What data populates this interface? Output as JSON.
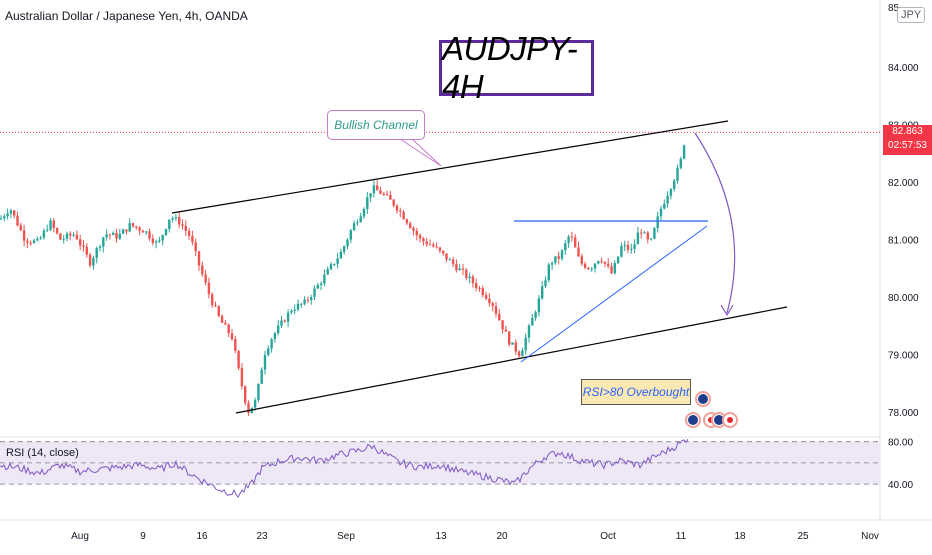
{
  "header": {
    "title": "Australian Dollar / Japanese Yen, 4h, OANDA"
  },
  "currency_badge": "JPY",
  "annotations": {
    "title_box": "AUDJPY-4H",
    "channel_label": "Bullish Channel",
    "rsi_note": "RSI>80 Overbought"
  },
  "last_price": {
    "value": "82.863",
    "countdown": "02:57:53"
  },
  "rsi_panel": {
    "label": "RSI (14, close)",
    "levels": [
      "80.00",
      "40.00"
    ]
  },
  "colors": {
    "up": "#26a69a",
    "down": "#ef5350",
    "rsi_line": "#7e57c2",
    "rsi_band": "#ede7f6",
    "channel": "#000000",
    "triangle": "#2962ff",
    "arc": "#7e57c2",
    "price_line": "#f23645"
  },
  "chart_data": {
    "type": "candlestick",
    "title": "Australian Dollar / Japanese Yen, 4h, OANDA",
    "price_axis": {
      "ticks": [
        "85",
        "84.000",
        "83.000",
        "82.000",
        "81.000",
        "80.000",
        "79.000",
        "78.000"
      ],
      "range": [
        77.6,
        85.0
      ]
    },
    "time_axis": {
      "ticks": [
        "Aug",
        "9",
        "16",
        "23",
        "Sep",
        "13",
        "20",
        "Oct",
        "11",
        "18",
        "25",
        "Nov"
      ]
    },
    "price_path": [
      [
        0,
        81.35
      ],
      [
        10,
        81.55
      ],
      [
        25,
        81.0
      ],
      [
        38,
        80.95
      ],
      [
        50,
        81.3
      ],
      [
        60,
        81.0
      ],
      [
        75,
        81.1
      ],
      [
        90,
        80.6
      ],
      [
        105,
        81.1
      ],
      [
        118,
        81.05
      ],
      [
        130,
        81.25
      ],
      [
        145,
        81.15
      ],
      [
        158,
        80.9
      ],
      [
        170,
        81.4
      ],
      [
        180,
        81.3
      ],
      [
        190,
        81.05
      ],
      [
        200,
        80.5
      ],
      [
        210,
        80.0
      ],
      [
        220,
        79.6
      ],
      [
        232,
        79.3
      ],
      [
        240,
        78.6
      ],
      [
        248,
        78.0
      ],
      [
        256,
        78.2
      ],
      [
        264,
        79.0
      ],
      [
        272,
        79.3
      ],
      [
        280,
        79.5
      ],
      [
        292,
        79.8
      ],
      [
        305,
        79.9
      ],
      [
        318,
        80.2
      ],
      [
        330,
        80.5
      ],
      [
        342,
        80.8
      ],
      [
        352,
        81.2
      ],
      [
        362,
        81.5
      ],
      [
        372,
        81.9
      ],
      [
        382,
        81.8
      ],
      [
        395,
        81.6
      ],
      [
        408,
        81.3
      ],
      [
        420,
        81.0
      ],
      [
        432,
        80.9
      ],
      [
        445,
        80.7
      ],
      [
        458,
        80.5
      ],
      [
        470,
        80.3
      ],
      [
        482,
        80.1
      ],
      [
        492,
        79.9
      ],
      [
        502,
        79.5
      ],
      [
        510,
        79.2
      ],
      [
        520,
        79.0
      ],
      [
        530,
        79.5
      ],
      [
        540,
        80.0
      ],
      [
        550,
        80.6
      ],
      [
        560,
        80.7
      ],
      [
        570,
        81.1
      ],
      [
        580,
        80.6
      ],
      [
        590,
        80.5
      ],
      [
        600,
        80.7
      ],
      [
        612,
        80.4
      ],
      [
        622,
        80.9
      ],
      [
        632,
        80.8
      ],
      [
        640,
        81.2
      ],
      [
        650,
        80.9
      ],
      [
        660,
        81.5
      ],
      [
        670,
        81.9
      ],
      [
        680,
        82.3
      ],
      [
        686,
        82.86
      ]
    ],
    "rsi_levels": [
      80,
      40
    ],
    "rsi_path": [
      [
        0,
        58
      ],
      [
        20,
        55
      ],
      [
        40,
        50
      ],
      [
        60,
        58
      ],
      [
        80,
        52
      ],
      [
        100,
        54
      ],
      [
        120,
        56
      ],
      [
        140,
        58
      ],
      [
        160,
        54
      ],
      [
        175,
        60
      ],
      [
        190,
        50
      ],
      [
        205,
        42
      ],
      [
        220,
        35
      ],
      [
        238,
        30
      ],
      [
        250,
        38
      ],
      [
        262,
        55
      ],
      [
        280,
        62
      ],
      [
        300,
        65
      ],
      [
        320,
        62
      ],
      [
        340,
        68
      ],
      [
        360,
        72
      ],
      [
        372,
        76
      ],
      [
        385,
        68
      ],
      [
        400,
        60
      ],
      [
        420,
        56
      ],
      [
        440,
        58
      ],
      [
        460,
        52
      ],
      [
        480,
        48
      ],
      [
        500,
        44
      ],
      [
        515,
        40
      ],
      [
        530,
        55
      ],
      [
        545,
        66
      ],
      [
        560,
        70
      ],
      [
        575,
        64
      ],
      [
        590,
        60
      ],
      [
        605,
        58
      ],
      [
        620,
        62
      ],
      [
        640,
        58
      ],
      [
        655,
        66
      ],
      [
        668,
        72
      ],
      [
        680,
        78
      ],
      [
        688,
        84
      ]
    ]
  }
}
